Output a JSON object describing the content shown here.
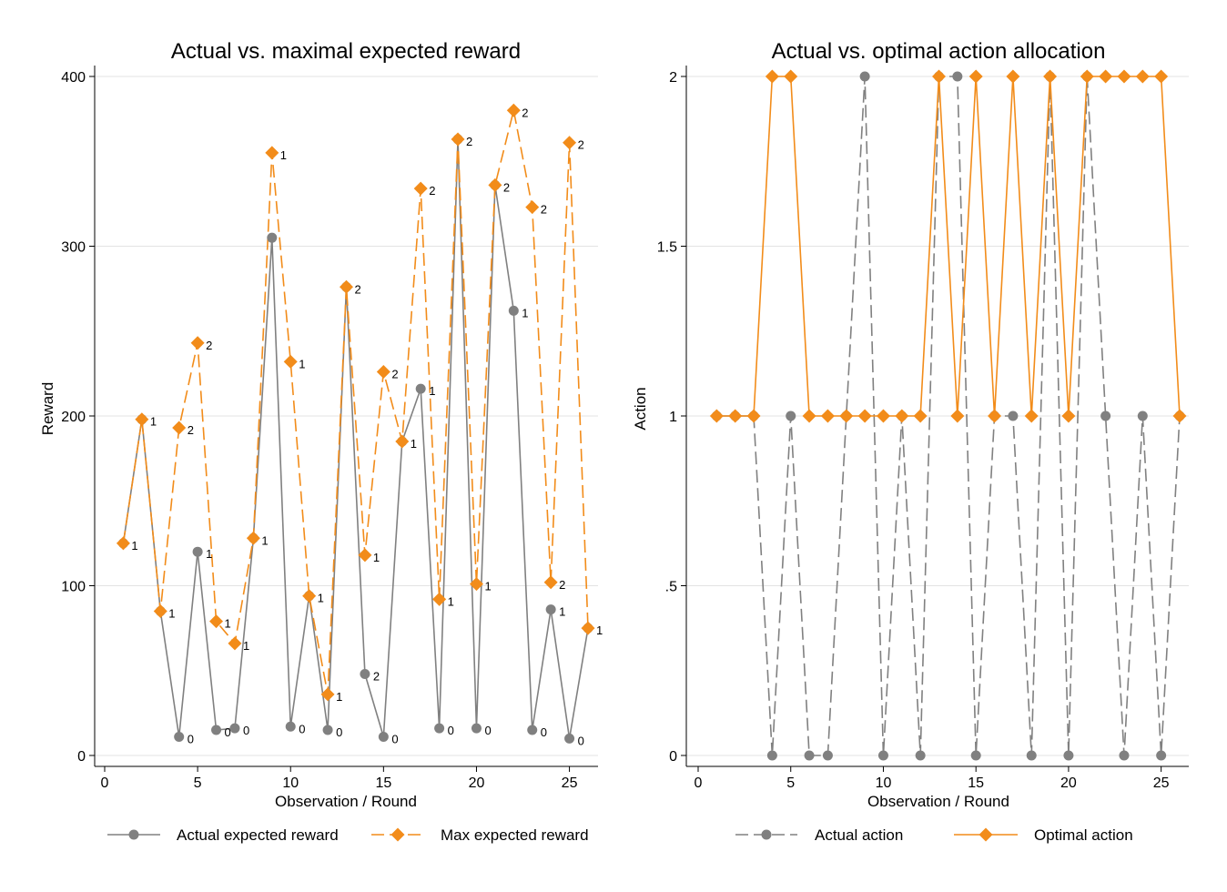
{
  "chart_data": [
    {
      "type": "line",
      "title": "Actual vs. maximal expected reward",
      "xlabel": "Observation / Round",
      "ylabel": "Reward",
      "xlim": [
        0,
        26
      ],
      "ylim": [
        0,
        400
      ],
      "xticks": [
        0,
        5,
        10,
        15,
        20,
        25
      ],
      "yticks": [
        0,
        100,
        200,
        300,
        400
      ],
      "ytick_labels": [
        "0",
        "100",
        "200",
        "300",
        "400"
      ],
      "grid": true,
      "x": [
        1,
        2,
        3,
        4,
        5,
        6,
        7,
        8,
        9,
        10,
        11,
        12,
        13,
        14,
        15,
        16,
        17,
        18,
        19,
        20,
        21,
        22,
        23,
        24,
        25,
        26
      ],
      "series": [
        {
          "name": "Actual expected reward",
          "color": "#808080",
          "marker": "circle",
          "dash": "solid",
          "values": [
            125,
            198,
            85,
            11,
            120,
            15,
            16,
            128,
            305,
            17,
            94,
            15,
            276,
            48,
            11,
            185,
            216,
            16,
            363,
            16,
            336,
            262,
            15,
            86,
            10,
            75
          ],
          "labels": [
            "1",
            "1",
            "1",
            "0",
            "1",
            "0",
            "0",
            "1",
            "2",
            "0",
            "1",
            "0",
            "2",
            "2",
            "0",
            "1",
            "1",
            "0",
            "2",
            "0",
            "2",
            "1",
            "0",
            "1",
            "0",
            "1"
          ],
          "label_indices": [
            3,
            4,
            5,
            6,
            9,
            11,
            13,
            14,
            16,
            17,
            19,
            21,
            22,
            23,
            24
          ]
        },
        {
          "name": "Max expected reward",
          "color": "#F28C1A",
          "marker": "diamond",
          "dash": "dashed",
          "values": [
            125,
            198,
            85,
            193,
            243,
            79,
            66,
            128,
            355,
            232,
            94,
            36,
            276,
            118,
            226,
            185,
            334,
            92,
            363,
            101,
            336,
            380,
            323,
            102,
            361,
            75
          ],
          "labels": [
            "1",
            "1",
            "1",
            "2",
            "2",
            "1",
            "1",
            "1",
            "1",
            "1",
            "1",
            "1",
            "2",
            "1",
            "2",
            "1",
            "2",
            "1",
            "2",
            "1",
            "2",
            "2",
            "2",
            "2",
            "2",
            "1"
          ]
        }
      ],
      "legend": {
        "placement": "bottom"
      }
    },
    {
      "type": "line",
      "title": "Actual vs. optimal action allocation",
      "xlabel": "Observation / Round",
      "ylabel": "Action",
      "xlim": [
        0,
        26
      ],
      "ylim": [
        0,
        2
      ],
      "xticks": [
        0,
        5,
        10,
        15,
        20,
        25
      ],
      "yticks": [
        0,
        0.5,
        1,
        1.5,
        2
      ],
      "ytick_labels": [
        "0",
        ".5",
        "1",
        "1.5",
        "2"
      ],
      "grid": true,
      "x": [
        1,
        2,
        3,
        4,
        5,
        6,
        7,
        8,
        9,
        10,
        11,
        12,
        13,
        14,
        15,
        16,
        17,
        18,
        19,
        20,
        21,
        22,
        23,
        24,
        25,
        26
      ],
      "series": [
        {
          "name": "Actual action",
          "color": "#808080",
          "marker": "circle",
          "dash": "dashed",
          "values": [
            1,
            1,
            1,
            0,
            1,
            0,
            0,
            1,
            2,
            0,
            1,
            0,
            2,
            2,
            0,
            1,
            1,
            0,
            2,
            0,
            2,
            1,
            0,
            1,
            0,
            1
          ]
        },
        {
          "name": "Optimal action",
          "color": "#F28C1A",
          "marker": "diamond",
          "dash": "solid",
          "values": [
            1,
            1,
            1,
            2,
            2,
            1,
            1,
            1,
            1,
            1,
            1,
            1,
            2,
            1,
            2,
            1,
            2,
            1,
            2,
            1,
            2,
            2,
            2,
            2,
            2,
            1
          ]
        }
      ],
      "legend": {
        "placement": "bottom"
      }
    }
  ]
}
